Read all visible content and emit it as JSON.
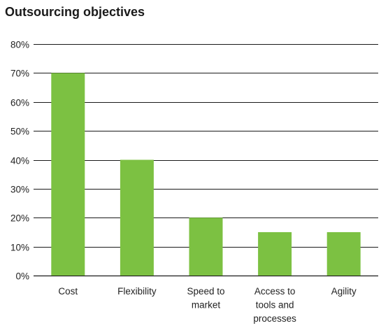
{
  "chart_data": {
    "type": "bar",
    "title": "Outsourcing objectives",
    "categories": [
      [
        "Cost"
      ],
      [
        "Flexibility"
      ],
      [
        "Speed to",
        "market"
      ],
      [
        "Access to",
        "tools and",
        "processes"
      ],
      [
        "Agility"
      ]
    ],
    "values": [
      70,
      40,
      20,
      15,
      15
    ],
    "unit": "%",
    "ylim": [
      0,
      80
    ],
    "yticks": [
      "0%",
      "10%",
      "20%",
      "30%",
      "40%",
      "50%",
      "60%",
      "70%",
      "80%"
    ],
    "xlabel": "",
    "ylabel": "",
    "grid": true,
    "legend": "none",
    "colors": {
      "bar": "#7cc142",
      "grid": "#1a1a1a",
      "text": "#222222"
    }
  }
}
